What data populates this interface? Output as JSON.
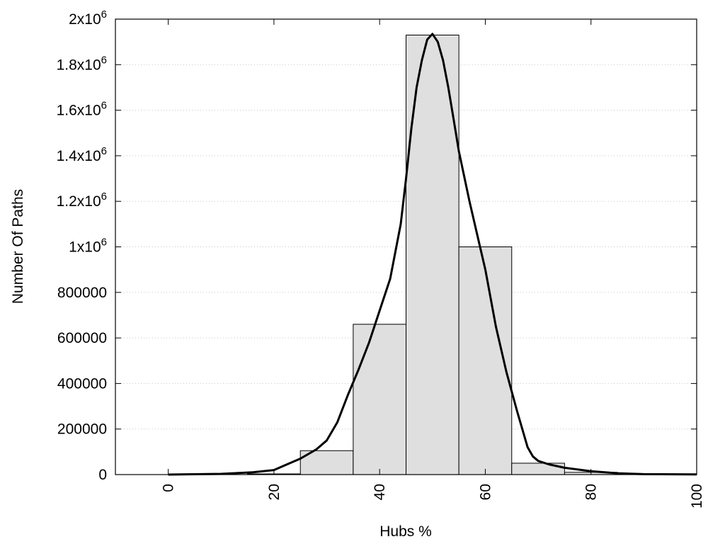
{
  "chart_data": {
    "type": "bar",
    "title": "",
    "xlabel": "Hubs %",
    "ylabel": "Number Of Paths",
    "xlim": [
      -10,
      100
    ],
    "ylim": [
      0,
      2000000
    ],
    "x_ticks": [
      0,
      20,
      40,
      60,
      80,
      100
    ],
    "x_tick_labels": [
      "0",
      "20",
      "40",
      "60",
      "80",
      "100"
    ],
    "y_ticks": [
      {
        "value": 0,
        "label": "0"
      },
      {
        "value": 200000,
        "label": "200000"
      },
      {
        "value": 400000,
        "label": "400000"
      },
      {
        "value": 600000,
        "label": "600000"
      },
      {
        "value": 800000,
        "label": "800000"
      },
      {
        "value": 1000000,
        "base": "1x10",
        "exp": "6"
      },
      {
        "value": 1200000,
        "base": "1.2x10",
        "exp": "6"
      },
      {
        "value": 1400000,
        "base": "1.4x10",
        "exp": "6"
      },
      {
        "value": 1600000,
        "base": "1.6x10",
        "exp": "6"
      },
      {
        "value": 1800000,
        "base": "1.8x10",
        "exp": "6"
      },
      {
        "value": 2000000,
        "base": "2x10",
        "exp": "6"
      }
    ],
    "grid": "horizontal-dotted",
    "bins": [
      {
        "x0": 15,
        "x1": 25,
        "value": 3000
      },
      {
        "x0": 25,
        "x1": 35,
        "value": 105000
      },
      {
        "x0": 35,
        "x1": 45,
        "value": 660000
      },
      {
        "x0": 45,
        "x1": 55,
        "value": 1930000
      },
      {
        "x0": 55,
        "x1": 65,
        "value": 1000000
      },
      {
        "x0": 65,
        "x1": 75,
        "value": 50000
      },
      {
        "x0": 75,
        "x1": 85,
        "value": 10000
      },
      {
        "x0": 85,
        "x1": 95,
        "value": 2000
      }
    ],
    "curve": {
      "x": [
        0,
        10,
        16,
        20,
        22,
        25,
        28,
        30,
        32,
        34,
        36,
        38,
        40,
        42,
        44,
        45,
        46,
        47,
        48,
        49,
        50,
        51,
        52,
        53,
        54,
        55,
        57,
        59,
        60,
        62,
        64,
        66,
        68,
        69,
        70,
        72,
        75,
        80,
        85,
        90,
        100
      ],
      "y": [
        0,
        3000,
        10000,
        20000,
        40000,
        70000,
        110000,
        150000,
        230000,
        350000,
        460000,
        580000,
        720000,
        860000,
        1100000,
        1300000,
        1520000,
        1700000,
        1820000,
        1910000,
        1935000,
        1900000,
        1820000,
        1700000,
        1560000,
        1420000,
        1200000,
        1000000,
        900000,
        650000,
        450000,
        280000,
        120000,
        80000,
        60000,
        45000,
        30000,
        15000,
        6000,
        2000,
        500
      ]
    }
  }
}
